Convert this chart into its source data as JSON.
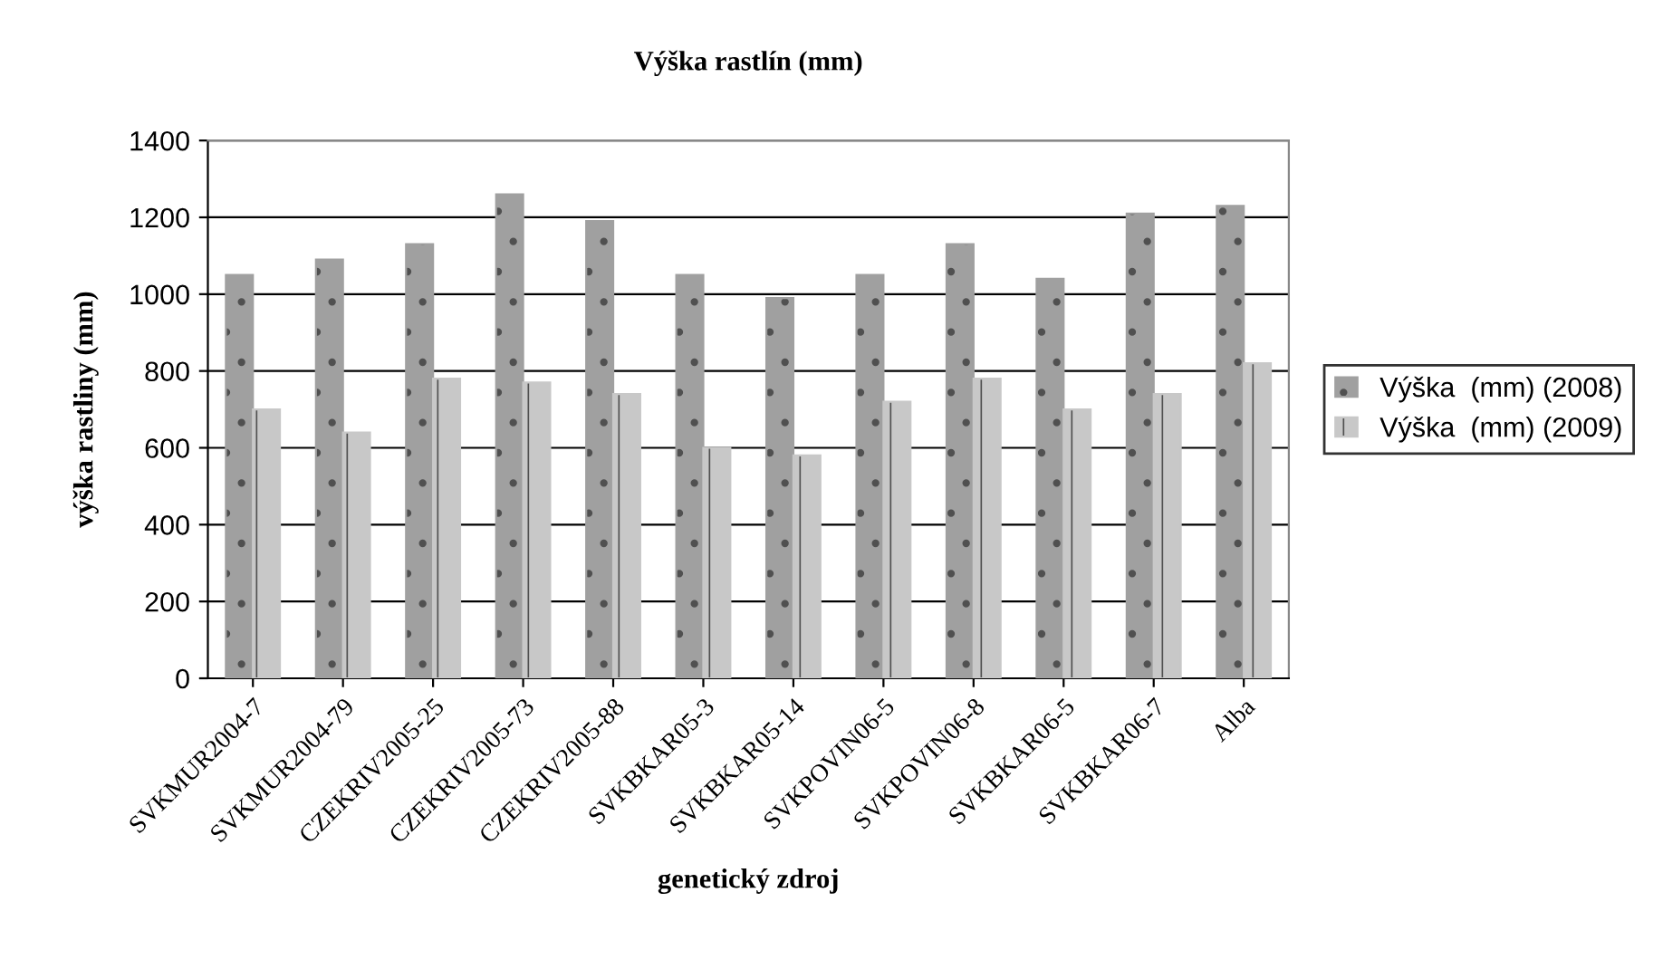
{
  "chart_data": {
    "type": "bar",
    "title": "Výška rastlín (mm)",
    "xlabel": "genetický zdroj",
    "ylabel": "výška rastliny (mm)",
    "categories": [
      "SVKMUR2004-7",
      "SVKMUR2004-79",
      "CZEKRIV2005-25",
      "CZEKRIV2005-73",
      "CZEKRIV2005-88",
      "SVKBKAR05-3",
      "SVKBKAR05-14",
      "SVKPOVIN06-5",
      "SVKPOVIN06-8",
      "SVKBKAR06-5",
      "SVKBKAR06-7",
      "Alba"
    ],
    "series": [
      {
        "name": "Výška  (mm) (2008)",
        "color": "#a0a0a0",
        "values": [
          1050,
          1090,
          1130,
          1260,
          1190,
          1050,
          990,
          1050,
          1130,
          1040,
          1210,
          1230
        ]
      },
      {
        "name": "Výška  (mm) (2009)",
        "color": "#c8c8c8",
        "values": [
          700,
          640,
          780,
          770,
          740,
          600,
          580,
          720,
          780,
          700,
          740,
          820
        ]
      }
    ],
    "ylim": [
      0,
      1400
    ],
    "yticks": [
      0,
      200,
      400,
      600,
      800,
      1000,
      1200,
      1400
    ],
    "grid": "y",
    "legend": "right"
  }
}
